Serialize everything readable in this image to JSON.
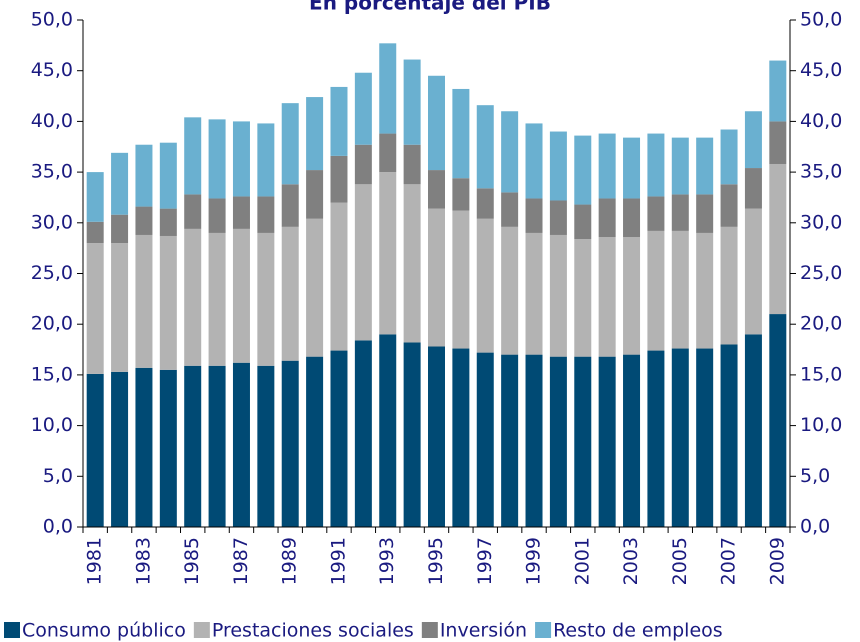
{
  "chart_data": {
    "type": "stacked_bar",
    "title": "En porcentaje del PIB",
    "categories": [
      "1981",
      null,
      "1983",
      null,
      "1985",
      null,
      "1987",
      null,
      "1989",
      null,
      "1991",
      null,
      "1993",
      null,
      "1995",
      null,
      "1997",
      null,
      "1999",
      null,
      "2001",
      null,
      "2003",
      null,
      "2005",
      null,
      "2007",
      null,
      "2009"
    ],
    "series": [
      {
        "name": "Consumo público",
        "color": "#004a74",
        "values": [
          15.1,
          15.3,
          15.7,
          15.5,
          15.9,
          15.9,
          16.2,
          15.9,
          16.4,
          16.8,
          17.4,
          18.4,
          19.0,
          18.2,
          17.8,
          17.6,
          17.2,
          17.0,
          17.0,
          16.8,
          16.8,
          16.8,
          17.0,
          17.4,
          17.6,
          17.6,
          18.0,
          19.0,
          21.0
        ]
      },
      {
        "name": "Prestaciones sociales",
        "color": "#b3b3b3",
        "values": [
          12.9,
          12.7,
          13.1,
          13.2,
          13.5,
          13.1,
          13.2,
          13.1,
          13.2,
          13.6,
          14.6,
          15.4,
          16.0,
          15.6,
          13.6,
          13.6,
          13.2,
          12.6,
          12.0,
          12.0,
          11.6,
          11.8,
          11.6,
          11.8,
          11.6,
          11.4,
          11.6,
          12.4,
          14.8
        ]
      },
      {
        "name": "Inversión",
        "color": "#808080",
        "values": [
          2.1,
          2.8,
          2.8,
          2.7,
          3.4,
          3.4,
          3.2,
          3.6,
          4.2,
          4.8,
          4.6,
          3.9,
          3.8,
          3.9,
          3.8,
          3.2,
          3.0,
          3.4,
          3.4,
          3.4,
          3.4,
          3.8,
          3.8,
          3.4,
          3.6,
          3.8,
          4.2,
          4.0,
          4.2
        ]
      },
      {
        "name": "Resto de empleos",
        "color": "#6ab0d0",
        "values": [
          4.9,
          6.1,
          6.1,
          6.5,
          7.6,
          7.8,
          7.4,
          7.2,
          8.0,
          7.2,
          6.8,
          7.1,
          8.9,
          8.4,
          9.3,
          8.8,
          8.2,
          8.0,
          7.4,
          6.8,
          6.8,
          6.4,
          6.0,
          6.2,
          5.6,
          5.6,
          5.4,
          5.6,
          6.0
        ]
      }
    ],
    "ylim": [
      0,
      50
    ],
    "yticks": [
      {
        "value": 0,
        "label": "0,0"
      },
      {
        "value": 5,
        "label": "5,0"
      },
      {
        "value": 10,
        "label": "10,0"
      },
      {
        "value": 15,
        "label": "15,0"
      },
      {
        "value": 20,
        "label": "20,0"
      },
      {
        "value": 25,
        "label": "25,0"
      },
      {
        "value": 30,
        "label": "30,0"
      },
      {
        "value": 35,
        "label": "35,0"
      },
      {
        "value": 40,
        "label": "40,0"
      },
      {
        "value": 45,
        "label": "45,0"
      },
      {
        "value": 50,
        "label": "50,0"
      }
    ],
    "y2lim": [
      0,
      50
    ],
    "y2ticks": [
      {
        "value": 0,
        "label": "0,0"
      },
      {
        "value": 5,
        "label": "5,0"
      },
      {
        "value": 10,
        "label": "10,0"
      },
      {
        "value": 15,
        "label": "15,0"
      },
      {
        "value": 20,
        "label": "20,0"
      },
      {
        "value": 25,
        "label": "25,0"
      },
      {
        "value": 30,
        "label": "30,0"
      },
      {
        "value": 35,
        "label": "35,0"
      },
      {
        "value": 40,
        "label": "40,0"
      },
      {
        "value": 45,
        "label": "45,0"
      },
      {
        "value": 50,
        "label": "50,0"
      }
    ],
    "grid": false,
    "legend": "bottom"
  }
}
